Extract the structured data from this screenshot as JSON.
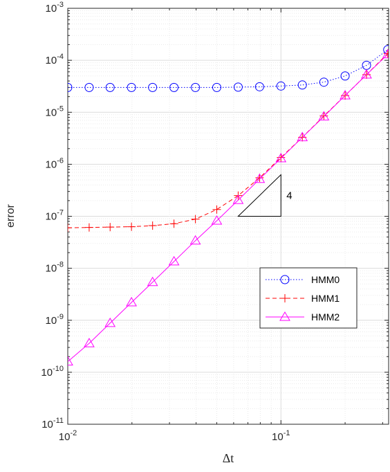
{
  "chart_data": {
    "type": "line",
    "xscale": "log",
    "yscale": "log",
    "xlim": [
      0.01,
      0.32
    ],
    "ylim": [
      1e-11,
      0.001
    ],
    "xlabel": "Δt",
    "ylabel": "error",
    "grid": true,
    "minor_grid": true,
    "legend_position": "lower-right",
    "x_ticks": [
      {
        "base": "10",
        "exp": "-2",
        "value": 0.01
      },
      {
        "base": "10",
        "exp": "-1",
        "value": 0.1
      }
    ],
    "y_ticks": [
      {
        "base": "10",
        "exp": "-11",
        "value": 1e-11
      },
      {
        "base": "10",
        "exp": "-10",
        "value": 1e-10
      },
      {
        "base": "10",
        "exp": "-9",
        "value": 1e-09
      },
      {
        "base": "10",
        "exp": "-8",
        "value": 1e-08
      },
      {
        "base": "10",
        "exp": "-7",
        "value": 1e-07
      },
      {
        "base": "10",
        "exp": "-6",
        "value": 1e-06
      },
      {
        "base": "10",
        "exp": "-5",
        "value": 1e-05
      },
      {
        "base": "10",
        "exp": "-4",
        "value": 0.0001
      },
      {
        "base": "10",
        "exp": "-3",
        "value": 0.001
      }
    ],
    "x": [
      0.01,
      0.0126,
      0.0158,
      0.0199,
      0.025,
      0.0315,
      0.0397,
      0.05,
      0.063,
      0.0794,
      0.1,
      0.126,
      0.159,
      0.2,
      0.252,
      0.317
    ],
    "series": [
      {
        "name": "HMM0",
        "color": "#0000ff",
        "line_style": "dotted",
        "marker": "circle",
        "values": [
          3e-05,
          3e-05,
          3e-05,
          3e-05,
          3e-05,
          3e-05,
          3e-05,
          3e-05,
          3.05e-05,
          3.1e-05,
          3.2e-05,
          3.35e-05,
          3.8e-05,
          5e-05,
          8e-05,
          0.00016
        ]
      },
      {
        "name": "HMM1",
        "color": "#ff0000",
        "line_style": "dashed",
        "marker": "plus",
        "values": [
          6e-08,
          6.1e-08,
          6.2e-08,
          6.3e-08,
          6.6e-08,
          7.2e-08,
          8.8e-08,
          1.35e-07,
          2.5e-07,
          5.5e-07,
          1.35e-06,
          3.3e-06,
          8.5e-06,
          2.1e-05,
          5.3e-05,
          0.000135
        ]
      },
      {
        "name": "HMM2",
        "color": "#ff00ff",
        "line_style": "solid",
        "marker": "triangle",
        "values": [
          1.6e-10,
          3.6e-10,
          8.8e-10,
          2.2e-09,
          5.4e-09,
          1.35e-08,
          3.4e-08,
          8.2e-08,
          2.05e-07,
          5.2e-07,
          1.3e-06,
          3.3e-06,
          8.3e-06,
          2.1e-05,
          5.3e-05,
          0.00013
        ]
      }
    ],
    "annotations": [
      {
        "type": "slope_triangle",
        "label": "4",
        "x": [
          0.063,
          0.1
        ],
        "y": [
          1e-07,
          6.3e-07
        ]
      }
    ]
  }
}
